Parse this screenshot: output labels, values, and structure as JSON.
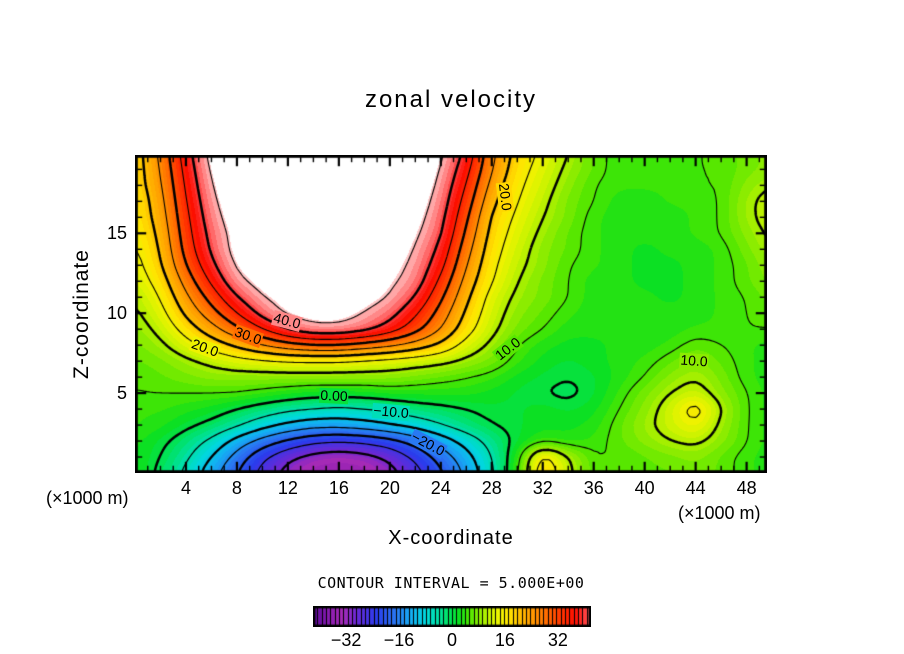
{
  "figure": {
    "title": "zonal velocity",
    "x_axis_label": "X-coordinate",
    "y_axis_label": "Z-coordinate",
    "unit_note_left": "(×1000 m)",
    "unit_note_right": "(×1000 m)",
    "contour_interval_label": "CONTOUR INTERVAL = 5.000E+00"
  },
  "chart_data": {
    "type": "filled-contour",
    "title": "zonal velocity",
    "xlabel": "X-coordinate (×1000 m)",
    "ylabel": "Z-coordinate (×1000 m)",
    "contour_interval": 5.0,
    "x_range": [
      0,
      49.6
    ],
    "z_range": [
      0,
      19.9
    ],
    "x_major_ticks": [
      4,
      8,
      12,
      16,
      20,
      24,
      28,
      32,
      36,
      40,
      44,
      48
    ],
    "x_minor_step": 1,
    "z_major_ticks": [
      5,
      10,
      15
    ],
    "z_minor_step": 1,
    "levels": [
      -30,
      -25,
      -20,
      -15,
      -10,
      -5,
      0,
      5,
      10,
      15,
      20,
      25,
      30,
      35,
      40,
      45
    ],
    "band_step": 1.25,
    "white_above": 45.5,
    "x": [
      0,
      2,
      4,
      6,
      8,
      10,
      12,
      14,
      16,
      18,
      20,
      22,
      24,
      26,
      28,
      30,
      32,
      34,
      36,
      38,
      40,
      42,
      44,
      46,
      48,
      50
    ],
    "z": [
      0,
      1,
      2,
      3,
      4,
      5,
      6,
      7,
      8,
      9,
      10,
      11,
      12,
      13,
      14,
      15,
      16,
      17,
      18,
      19,
      20
    ],
    "values": [
      [
        3,
        -1,
        -6,
        -13,
        -20,
        -27,
        -32,
        -35,
        -36,
        -35,
        -32,
        -27,
        -21,
        -14,
        -6,
        4,
        20,
        11,
        5,
        5,
        6,
        6,
        7,
        6,
        4,
        3
      ],
      [
        3,
        0,
        -4,
        -10,
        -17,
        -24,
        -29,
        -32,
        -33,
        -32,
        -29,
        -24,
        -18,
        -12,
        -5,
        3,
        18,
        10,
        5,
        5,
        6,
        7,
        8,
        6,
        4,
        3
      ],
      [
        3,
        1,
        -2,
        -6,
        -12,
        -17,
        -21,
        -24,
        -25,
        -24,
        -22,
        -18,
        -13,
        -8,
        -3,
        1,
        4,
        3,
        4,
        6,
        8,
        10,
        11,
        8,
        5,
        3
      ],
      [
        4,
        3,
        1,
        -1,
        -4,
        -8,
        -11,
        -13,
        -13,
        -12,
        -10,
        -8,
        -5,
        -2,
        0,
        1,
        2,
        2,
        3,
        6,
        9,
        12,
        15,
        9,
        5,
        3
      ],
      [
        4,
        4,
        3,
        2,
        0,
        -2,
        -4,
        -5,
        -6,
        -5,
        -4,
        -2,
        -1,
        0,
        1,
        1,
        2,
        1,
        2,
        5,
        8,
        12,
        18,
        10,
        5,
        3
      ],
      [
        5,
        5,
        5,
        5,
        5,
        4,
        3,
        2,
        2,
        2,
        3,
        3,
        3,
        3,
        2,
        1,
        0,
        -1,
        1,
        4,
        7,
        10,
        12,
        8,
        5,
        3
      ],
      [
        5,
        6,
        7,
        8,
        8,
        8,
        8,
        8,
        8,
        8,
        8,
        7,
        6,
        5,
        4,
        2,
        1,
        0,
        1,
        3,
        5,
        8,
        10,
        7,
        4,
        3
      ],
      [
        6,
        7,
        9,
        11,
        13,
        14,
        15,
        15,
        15,
        14,
        13,
        12,
        11,
        9,
        7,
        4,
        2,
        1,
        2,
        3,
        4,
        6,
        8,
        6,
        4,
        3
      ],
      [
        7,
        9,
        13,
        17,
        21,
        25,
        28,
        30,
        30,
        28,
        26,
        23,
        19,
        13,
        9,
        5,
        3,
        2,
        2,
        3,
        3,
        4,
        6,
        5,
        4,
        3
      ],
      [
        8,
        11,
        17,
        23,
        29,
        35,
        41,
        44,
        44,
        42,
        38,
        32,
        25,
        17,
        11,
        7,
        5,
        3,
        3,
        3,
        3,
        3,
        4,
        4,
        5,
        5
      ],
      [
        9,
        13,
        21,
        28,
        35,
        42,
        46,
        47,
        47,
        45,
        42,
        36,
        28,
        19,
        12,
        8,
        6,
        4,
        3,
        3,
        3,
        3,
        3,
        4,
        5,
        6
      ],
      [
        10,
        15,
        24,
        32,
        40,
        45,
        47,
        48,
        48,
        47,
        45,
        40,
        31,
        21,
        13,
        9,
        7,
        5,
        3,
        3,
        3,
        2,
        3,
        4,
        5,
        7
      ],
      [
        12,
        17,
        27,
        36,
        44,
        47,
        49,
        50,
        50,
        48,
        46,
        43,
        34,
        23,
        15,
        10,
        7,
        5,
        3,
        3,
        2,
        2,
        3,
        4,
        6,
        8
      ],
      [
        13,
        19,
        30,
        39,
        46,
        48,
        50,
        51,
        51,
        50,
        47,
        44,
        37,
        25,
        16,
        11,
        8,
        5,
        4,
        3,
        2,
        2,
        3,
        4,
        6,
        9
      ],
      [
        14,
        20,
        32,
        41,
        47,
        49,
        51,
        52,
        52,
        51,
        48,
        45,
        39,
        27,
        17,
        12,
        8,
        6,
        4,
        3,
        2,
        3,
        3,
        4,
        7,
        10
      ],
      [
        15,
        21,
        33,
        42,
        47,
        50,
        52,
        53,
        53,
        52,
        49,
        46,
        41,
        29,
        18,
        13,
        9,
        6,
        4,
        3,
        3,
        3,
        4,
        5,
        8,
        11
      ],
      [
        16,
        22,
        34,
        43,
        48,
        51,
        53,
        54,
        54,
        53,
        50,
        47,
        42,
        31,
        19,
        14,
        10,
        7,
        4,
        3,
        3,
        3,
        4,
        5,
        9,
        12
      ],
      [
        16,
        23,
        35,
        44,
        49,
        52,
        54,
        55,
        55,
        54,
        51,
        48,
        43,
        33,
        21,
        15,
        11,
        7,
        5,
        3,
        3,
        4,
        4,
        5,
        9,
        12
      ],
      [
        17,
        24,
        36,
        45,
        50,
        53,
        55,
        56,
        56,
        55,
        52,
        49,
        44,
        35,
        23,
        16,
        12,
        8,
        5,
        4,
        4,
        4,
        5,
        5,
        8,
        10
      ],
      [
        17,
        25,
        37,
        46,
        51,
        54,
        56,
        57,
        57,
        56,
        53,
        50,
        45,
        37,
        25,
        17,
        13,
        9,
        6,
        4,
        4,
        5,
        5,
        5,
        7,
        8
      ],
      [
        17,
        26,
        38,
        47,
        52,
        55,
        57,
        58,
        58,
        57,
        54,
        51,
        46,
        39,
        26,
        18,
        14,
        10,
        6,
        4,
        4,
        5,
        5,
        5,
        7,
        8
      ]
    ],
    "palette": [
      [
        -42,
        "#5c0a9a"
      ],
      [
        -37,
        "#8a1cb0"
      ],
      [
        -33,
        "#a62ab6"
      ],
      [
        -29,
        "#6a28d4"
      ],
      [
        -23,
        "#2a3cec"
      ],
      [
        -17,
        "#2a78f2"
      ],
      [
        -12,
        "#12b2f2"
      ],
      [
        -8,
        "#00d8dc"
      ],
      [
        -4,
        "#00e0a0"
      ],
      [
        -1,
        "#00e25c"
      ],
      [
        2,
        "#0ce020"
      ],
      [
        5,
        "#4ae600"
      ],
      [
        8,
        "#8aec00"
      ],
      [
        11,
        "#c2f200"
      ],
      [
        14,
        "#ecf400"
      ],
      [
        17,
        "#ffe400"
      ],
      [
        21,
        "#ffb600"
      ],
      [
        25,
        "#ff9000"
      ],
      [
        29,
        "#ff6400"
      ],
      [
        33,
        "#ff3400"
      ],
      [
        37,
        "#fc0e00"
      ],
      [
        40,
        "#ff3c3c"
      ],
      [
        42.5,
        "#ff7878"
      ],
      [
        44.5,
        "#ffaaaa"
      ],
      [
        45.6,
        "#ffc8c8"
      ]
    ],
    "contour_labels": [
      {
        "text": "20.0",
        "x": 29.0,
        "z": 17.3,
        "rot": 83
      },
      {
        "text": "40.0",
        "x": 11.9,
        "z": 9.5,
        "rot": 15
      },
      {
        "text": "30.0",
        "x": 8.9,
        "z": 8.6,
        "rot": 20
      },
      {
        "text": "20.0",
        "x": 5.5,
        "z": 7.8,
        "rot": 20
      },
      {
        "text": "10.0",
        "x": 29.3,
        "z": 7.75,
        "rot": -38
      },
      {
        "text": "0.00",
        "x": 15.6,
        "z": 4.8,
        "rot": 3
      },
      {
        "text": "−10.0",
        "x": 20.1,
        "z": 3.8,
        "rot": 5
      },
      {
        "text": "−20.0",
        "x": 23.0,
        "z": 1.8,
        "rot": 28
      },
      {
        "text": "10.0",
        "x": 43.9,
        "z": 7.0,
        "rot": 4
      }
    ],
    "colorbar": {
      "min": -42,
      "max": 42,
      "cells": 64,
      "tick_values": [
        -32,
        -16,
        0,
        16,
        32
      ],
      "tick_labels": [
        "−32",
        "−16",
        "0",
        "16",
        "32"
      ]
    }
  }
}
